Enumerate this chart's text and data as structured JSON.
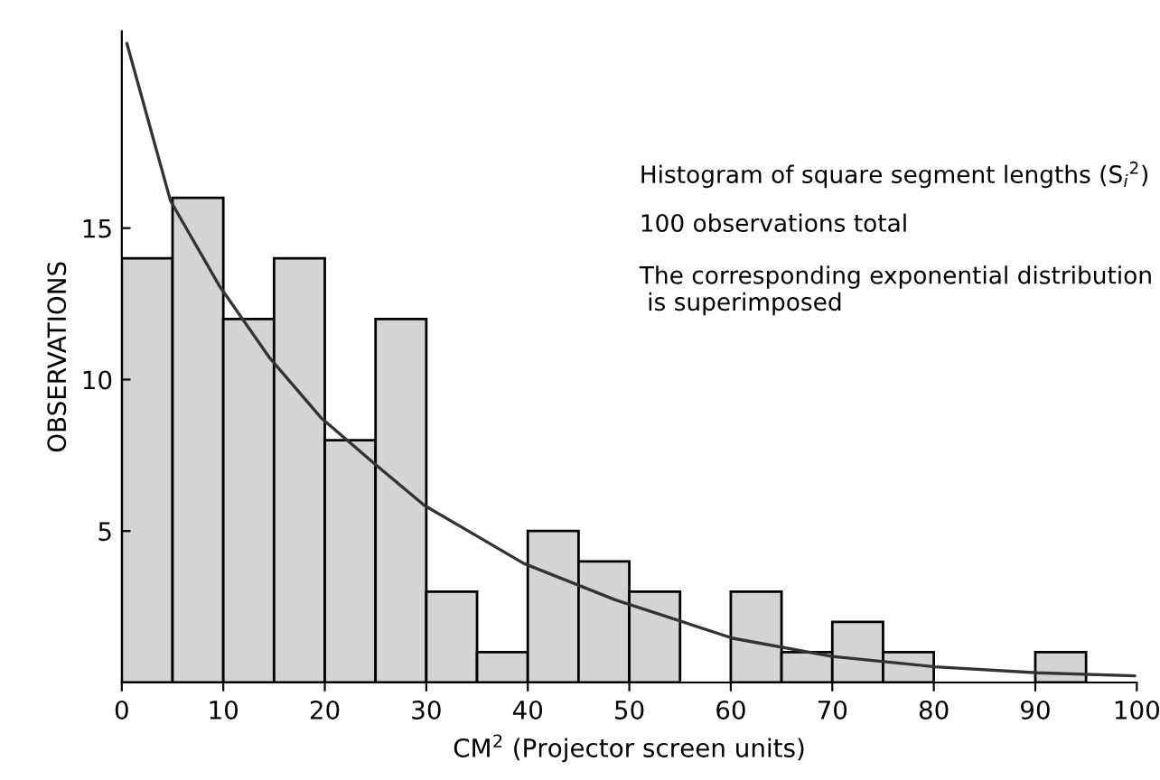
{
  "chart_data": {
    "type": "histogram",
    "xlabel": "CM$^{2}$ (Projector screen units)",
    "ylabel": "OBSERVATIONS",
    "annotations": [
      "Histogram of square segment lengths (S$_{i}$$^{2}$)",
      "100 observations total",
      "The corresponding exponential distribution\n is superimposed"
    ],
    "bins": [
      0,
      5,
      10,
      15,
      20,
      25,
      30,
      35,
      40,
      45,
      50,
      55,
      60,
      65,
      70,
      75,
      80,
      85,
      90,
      95
    ],
    "values": [
      14,
      16,
      12,
      14,
      8,
      12,
      3,
      1,
      5,
      4,
      3,
      0,
      3,
      1,
      2,
      1,
      0,
      0,
      1
    ],
    "color": "#d4d4d4",
    "series": [
      {
        "type": "line",
        "color": "#333333",
        "x": [
          0.5,
          4.8,
          9.6,
          14.6,
          19.6,
          24.8,
          29.8,
          39.6,
          48.6,
          60.2,
          70,
          80.1,
          90.2,
          99.8
        ],
        "values": [
          21.1,
          15.9,
          13.1,
          10.7,
          8.75,
          7.25,
          5.85,
          3.93,
          2.73,
          1.46,
          0.86,
          0.52,
          0.32,
          0.22
        ]
      }
    ],
    "xlim": [
      0,
      100
    ],
    "ylim": [
      0,
      21.5
    ],
    "xticks": [
      0,
      10,
      20,
      30,
      40,
      50,
      60,
      70,
      80,
      90,
      100
    ],
    "yticks": [
      5,
      10,
      15
    ],
    "grid": false,
    "legend": false
  }
}
